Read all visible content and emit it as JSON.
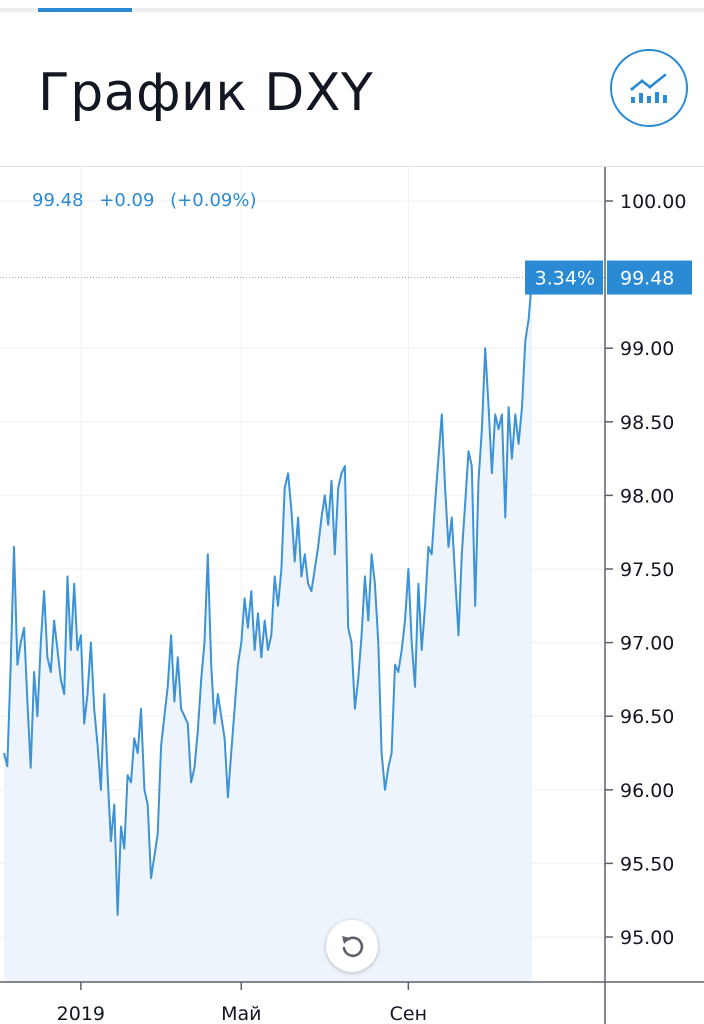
{
  "header": {
    "title": "График DXY",
    "chart_type_icon": "chart-bars-line-icon"
  },
  "legend": {
    "last": "99.48",
    "change": "+0.09",
    "change_pct": "(+0.09%)"
  },
  "reset_icon": "reset-rotate-icon",
  "colors": {
    "accent": "#2a8ad4",
    "line": "#3d93d6",
    "area": "#eef4fb",
    "grid": "#eef0f3",
    "text": "#131722"
  },
  "chart_data": {
    "type": "area",
    "title": "График DXY",
    "xlabel": "",
    "ylabel": "",
    "ylim": [
      94.7,
      100.45
    ],
    "x_ticks": [
      {
        "label": "2019",
        "index": 23
      },
      {
        "label": "Май",
        "index": 71
      },
      {
        "label": "Сен",
        "index": 121
      }
    ],
    "y_ticks": [
      "95.00",
      "95.50",
      "96.00",
      "96.50",
      "97.00",
      "97.50",
      "98.00",
      "98.50",
      "99.00",
      "100.00"
    ],
    "last_price_label": "99.48",
    "last_price_value": 99.48,
    "period_change_label": "3.34%",
    "grid": true,
    "values": [
      96.25,
      96.16,
      96.85,
      97.65,
      96.85,
      97.0,
      97.1,
      96.6,
      96.15,
      96.8,
      96.5,
      97.0,
      97.35,
      96.9,
      96.8,
      97.15,
      96.95,
      96.75,
      96.65,
      97.45,
      96.95,
      97.4,
      96.95,
      97.05,
      96.45,
      96.65,
      97.0,
      96.55,
      96.3,
      96.0,
      96.65,
      96.1,
      95.65,
      95.9,
      95.15,
      95.75,
      95.6,
      96.1,
      96.05,
      96.35,
      96.25,
      96.55,
      96.0,
      95.9,
      95.4,
      95.55,
      95.7,
      96.3,
      96.5,
      96.7,
      97.05,
      96.6,
      96.9,
      96.55,
      96.5,
      96.45,
      96.05,
      96.15,
      96.4,
      96.75,
      97.0,
      97.6,
      96.85,
      96.45,
      96.65,
      96.5,
      96.35,
      95.95,
      96.25,
      96.55,
      96.85,
      97.0,
      97.3,
      97.1,
      97.35,
      96.95,
      97.2,
      96.9,
      97.15,
      96.95,
      97.05,
      97.45,
      97.25,
      97.5,
      98.05,
      98.15,
      97.9,
      97.55,
      97.85,
      97.45,
      97.6,
      97.4,
      97.35,
      97.5,
      97.65,
      97.85,
      98.0,
      97.8,
      98.1,
      97.6,
      98.05,
      98.15,
      98.2,
      97.1,
      97.0,
      96.55,
      96.75,
      97.05,
      97.45,
      97.15,
      97.6,
      97.4,
      97.0,
      96.25,
      96.0,
      96.15,
      96.25,
      96.85,
      96.8,
      96.95,
      97.15,
      97.5,
      97.0,
      96.7,
      97.4,
      96.95,
      97.25,
      97.65,
      97.6,
      97.95,
      98.25,
      98.55,
      98.05,
      97.65,
      97.85,
      97.45,
      97.05,
      97.6,
      97.95,
      98.3,
      98.2,
      97.25,
      98.1,
      98.45,
      99.0,
      98.6,
      98.15,
      98.55,
      98.45,
      98.55,
      97.85,
      98.6,
      98.25,
      98.55,
      98.35,
      98.6,
      99.05,
      99.2,
      99.48
    ]
  }
}
